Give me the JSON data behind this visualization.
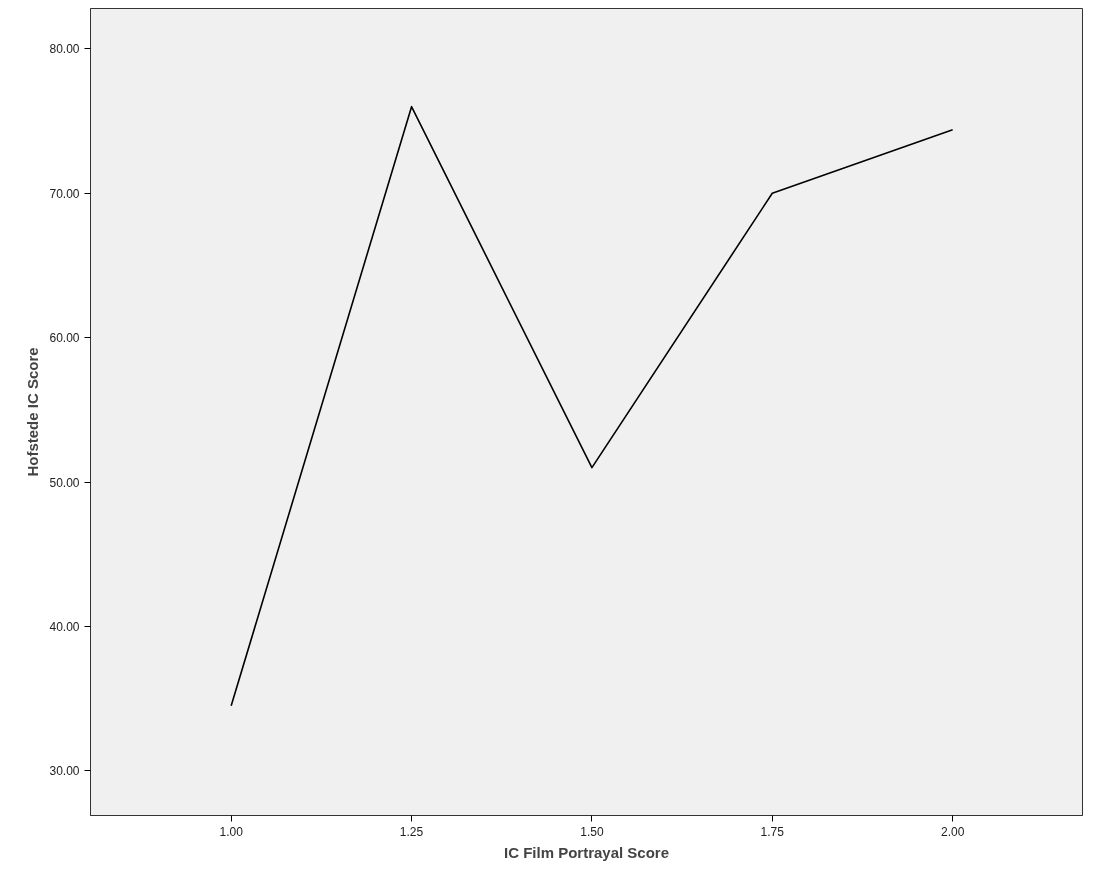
{
  "chart_data": {
    "type": "line",
    "xlabel": "IC Film Portrayal Score",
    "ylabel": "Hofstede IC Score",
    "x": [
      1.0,
      1.25,
      1.5,
      1.75,
      2.0
    ],
    "series": [
      {
        "color": "#000000",
        "values": [
          34.5,
          76.0,
          51.0,
          70.0,
          74.4
        ]
      }
    ],
    "xlim": [
      0.805,
      2.18
    ],
    "ylim": [
      26.9,
      82.8
    ],
    "xticks": [
      {
        "value": 1.0,
        "label": "1.00"
      },
      {
        "value": 1.25,
        "label": "1.25"
      },
      {
        "value": 1.5,
        "label": "1.50"
      },
      {
        "value": 1.75,
        "label": "1.75"
      },
      {
        "value": 2.0,
        "label": "2.00"
      }
    ],
    "yticks": [
      {
        "value": 30,
        "label": "30.00"
      },
      {
        "value": 40,
        "label": "40.00"
      },
      {
        "value": 50,
        "label": "50.00"
      },
      {
        "value": 60,
        "label": "60.00"
      },
      {
        "value": 70,
        "label": "70.00"
      },
      {
        "value": 80,
        "label": "80.00"
      }
    ],
    "grid": false,
    "line_style": "solid"
  }
}
